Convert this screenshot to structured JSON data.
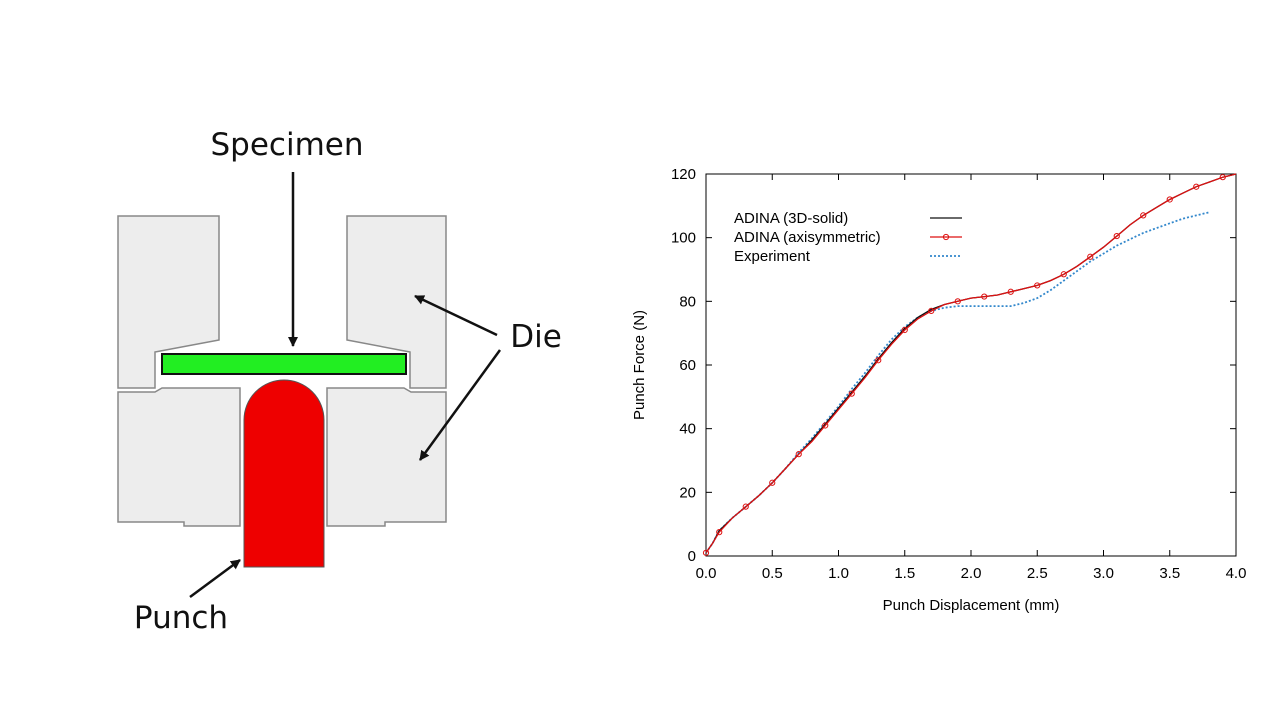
{
  "diagram": {
    "labels": {
      "specimen": "Specimen",
      "die": "Die",
      "punch": "Punch"
    },
    "colors": {
      "specimen": "#22ee22",
      "punch": "#ee0000",
      "die": "#ededed",
      "die_edge": "#888888"
    }
  },
  "chart_data": {
    "type": "line",
    "xlabel": "Punch Displacement (mm)",
    "ylabel": "Punch Force (N)",
    "xlim": [
      0.0,
      4.0
    ],
    "ylim": [
      0,
      120
    ],
    "xticks": [
      "0.0",
      "0.5",
      "1.0",
      "1.5",
      "2.0",
      "2.5",
      "3.0",
      "3.5",
      "4.0"
    ],
    "yticks": [
      "0",
      "20",
      "40",
      "60",
      "80",
      "100",
      "120"
    ],
    "legend_position": "top-left",
    "grid": false,
    "series": [
      {
        "name": "ADINA (3D-solid)",
        "color": "#111111",
        "style": "solid",
        "x": [
          0.0,
          0.05,
          0.1,
          0.2,
          0.3,
          0.4,
          0.5,
          0.6,
          0.7,
          0.8,
          0.9,
          1.0,
          1.1,
          1.2,
          1.3,
          1.4,
          1.5,
          1.6,
          1.7,
          1.8,
          1.9,
          2.0,
          2.1,
          2.2,
          2.3,
          2.4,
          2.5,
          2.6,
          2.7,
          2.8,
          2.9,
          3.0,
          3.1,
          3.2,
          3.3,
          3.4,
          3.5,
          3.6,
          3.7,
          3.8,
          3.9,
          4.0
        ],
        "y": [
          1,
          4,
          8,
          12,
          15.5,
          19,
          23,
          27.5,
          32,
          36.5,
          41.5,
          46.5,
          51.5,
          56.5,
          62,
          67,
          71.5,
          75,
          77.5,
          79,
          80,
          81,
          81.5,
          82,
          83,
          84,
          85,
          86.5,
          88.5,
          91,
          94,
          97,
          100.5,
          104,
          107,
          109.5,
          112,
          114,
          116,
          117.5,
          119,
          120
        ]
      },
      {
        "name": "ADINA (axisymmetric)",
        "color": "#dd1111",
        "style": "solid-circles",
        "x": [
          0.0,
          0.05,
          0.1,
          0.2,
          0.3,
          0.4,
          0.5,
          0.6,
          0.7,
          0.8,
          0.9,
          1.0,
          1.1,
          1.2,
          1.3,
          1.4,
          1.5,
          1.6,
          1.7,
          1.8,
          1.9,
          2.0,
          2.1,
          2.2,
          2.3,
          2.4,
          2.5,
          2.6,
          2.7,
          2.8,
          2.9,
          3.0,
          3.1,
          3.2,
          3.3,
          3.4,
          3.5,
          3.6,
          3.7,
          3.8,
          3.9,
          4.0
        ],
        "y": [
          1,
          4,
          7.5,
          12,
          15.5,
          19,
          23,
          27.5,
          32,
          36,
          41,
          46,
          51,
          56,
          61.5,
          66.5,
          71,
          74.5,
          77,
          79,
          80,
          81,
          81.5,
          82,
          83,
          84,
          85,
          86.5,
          88.5,
          91,
          94,
          97,
          100.5,
          104,
          107,
          109.5,
          112,
          114,
          116,
          117.5,
          119,
          120
        ]
      },
      {
        "name": "Experiment",
        "color": "#3388cc",
        "style": "dotted",
        "x": [
          0.0,
          0.05,
          0.1,
          0.2,
          0.3,
          0.4,
          0.5,
          0.6,
          0.7,
          0.8,
          0.9,
          1.0,
          1.1,
          1.2,
          1.3,
          1.4,
          1.5,
          1.6,
          1.7,
          1.8,
          1.9,
          2.0,
          2.1,
          2.2,
          2.3,
          2.4,
          2.5,
          2.6,
          2.7,
          2.8,
          2.9,
          3.0,
          3.1,
          3.2,
          3.3,
          3.4,
          3.5,
          3.6,
          3.7,
          3.8
        ],
        "y": [
          1,
          4,
          8,
          12,
          15.5,
          19,
          23,
          27.5,
          32.5,
          37,
          42,
          47,
          52.5,
          57.5,
          63,
          68,
          72,
          75,
          77,
          78,
          78.5,
          78.5,
          78.5,
          78.5,
          78.5,
          79.5,
          81,
          83.5,
          86.5,
          89.5,
          92.5,
          95,
          97.5,
          99.5,
          101.5,
          103,
          104.5,
          106,
          107,
          108
        ]
      }
    ]
  }
}
